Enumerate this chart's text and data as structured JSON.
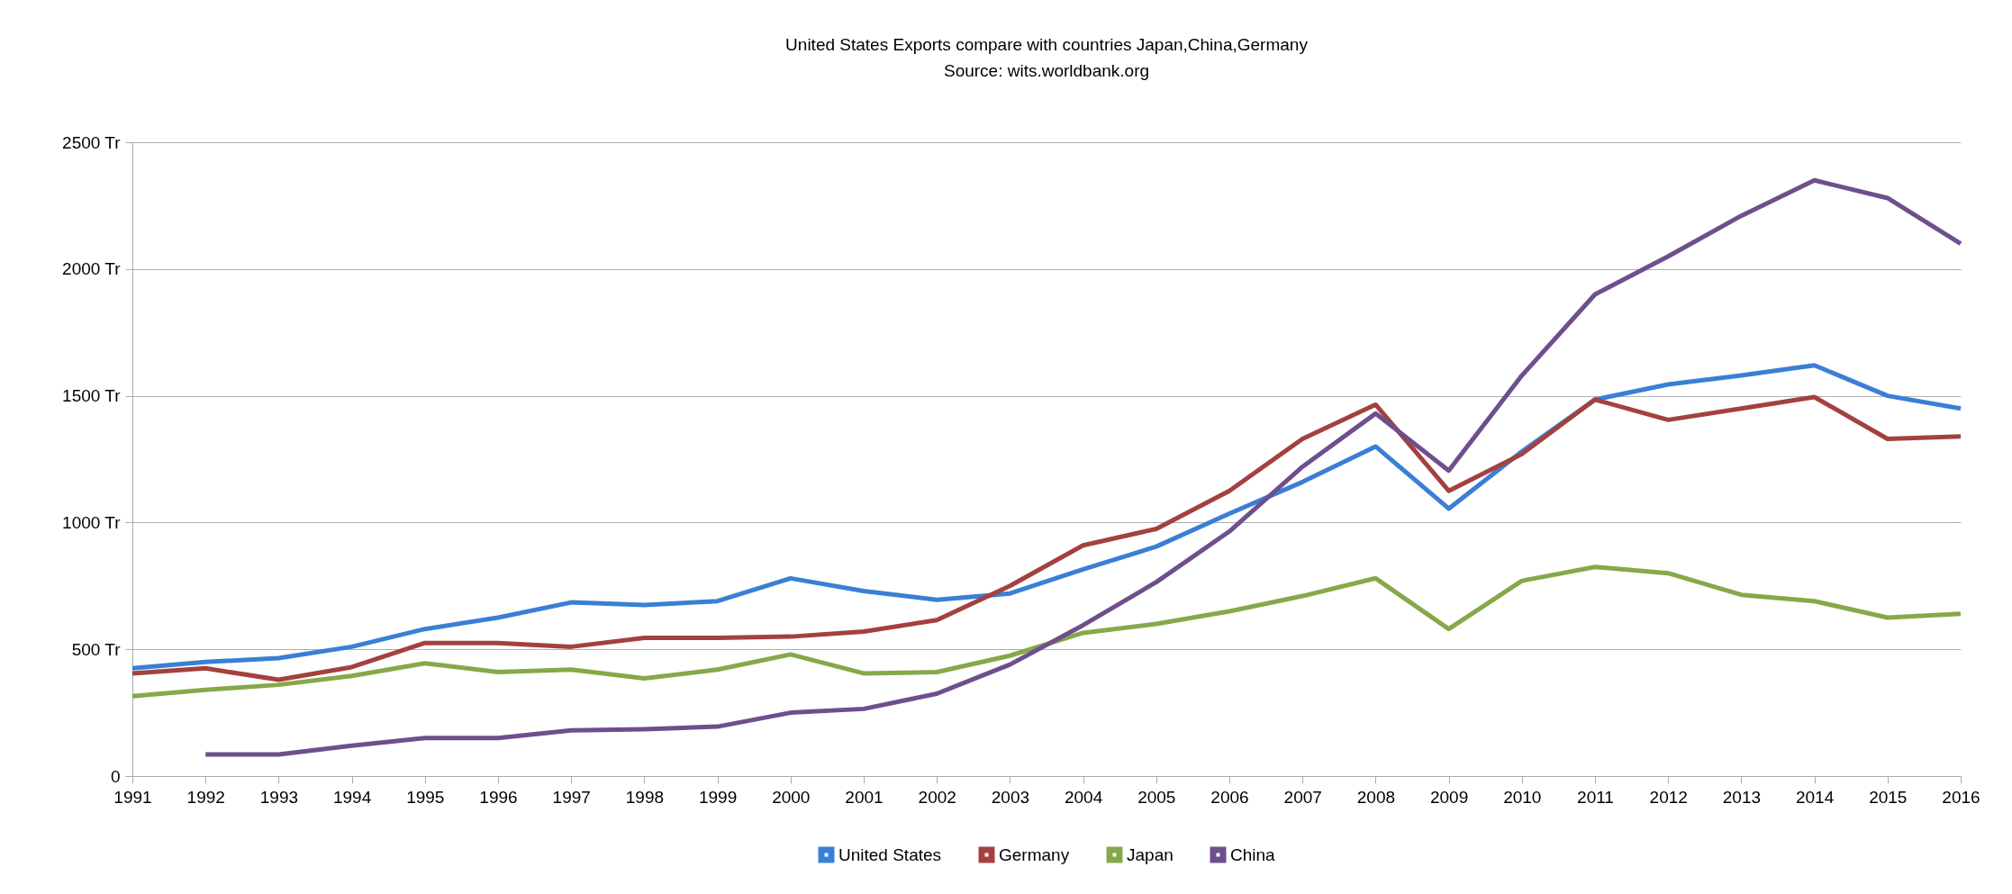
{
  "chart_data": {
    "type": "line",
    "title": "United States Exports compare with countries Japan,China,Germany",
    "subtitle": "Source: wits.worldbank.org",
    "categories": [
      "1991",
      "1992",
      "1993",
      "1994",
      "1995",
      "1996",
      "1997",
      "1998",
      "1999",
      "2000",
      "2001",
      "2002",
      "2003",
      "2004",
      "2005",
      "2006",
      "2007",
      "2008",
      "2009",
      "2010",
      "2011",
      "2012",
      "2013",
      "2014",
      "2015",
      "2016"
    ],
    "series": [
      {
        "name": "United States",
        "color": "#3a7fd5",
        "values": [
          425,
          450,
          465,
          510,
          580,
          625,
          685,
          675,
          690,
          780,
          730,
          695,
          720,
          815,
          905,
          1035,
          1160,
          1300,
          1055,
          1280,
          1485,
          1545,
          1580,
          1620,
          1500,
          1450
        ]
      },
      {
        "name": "Germany",
        "color": "#a3413f",
        "values": [
          405,
          425,
          380,
          430,
          525,
          525,
          510,
          545,
          545,
          550,
          570,
          615,
          750,
          910,
          975,
          1125,
          1330,
          1465,
          1125,
          1270,
          1485,
          1405,
          1450,
          1495,
          1330,
          1340
        ]
      },
      {
        "name": "Japan",
        "color": "#86a84a",
        "values": [
          315,
          340,
          360,
          395,
          445,
          410,
          420,
          385,
          420,
          480,
          405,
          410,
          475,
          565,
          600,
          650,
          710,
          780,
          580,
          770,
          825,
          800,
          715,
          690,
          625,
          640
        ]
      },
      {
        "name": "China",
        "color": "#6e4f8e",
        "values": [
          null,
          85,
          85,
          120,
          150,
          150,
          180,
          185,
          195,
          250,
          265,
          325,
          440,
          595,
          765,
          965,
          1220,
          1430,
          1205,
          1580,
          1900,
          2050,
          2210,
          2350,
          2280,
          2100
        ]
      }
    ],
    "ylim": [
      0,
      2500
    ],
    "yticks": [
      0,
      {
        "value": 500,
        "label": "500 Tr"
      },
      {
        "value": 1000,
        "label": "1000 Tr"
      },
      {
        "value": 1500,
        "label": "1500 Tr"
      },
      {
        "value": 2000,
        "label": "2000 Tr"
      },
      {
        "value": 2500,
        "label": "2500 Tr"
      }
    ],
    "grid": "y",
    "legend": "bottom",
    "marker": "none",
    "line_style": "solid"
  }
}
